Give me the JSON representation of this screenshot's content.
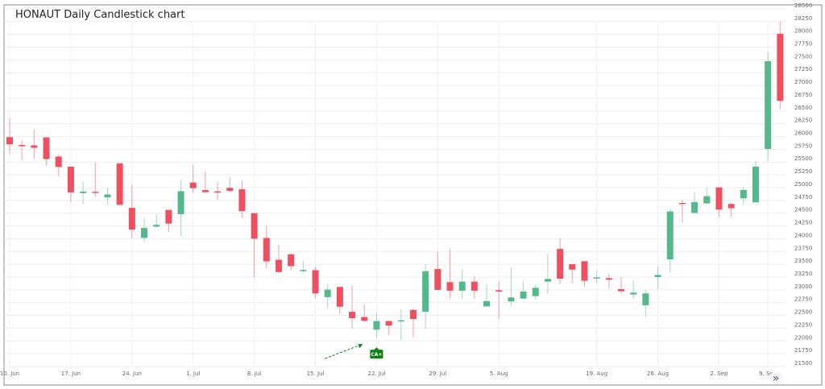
{
  "chart_data": {
    "type": "candlestick",
    "title": "HONAUT Daily Candlestick chart",
    "xlabel": "",
    "ylabel": "",
    "ylim": [
      21500,
      28500
    ],
    "ytick_step": 250,
    "y_axis_side": "right",
    "grid": true,
    "colors": {
      "up": "#54b98a",
      "down": "#ef4f5e",
      "marker": "#0b7d12"
    },
    "x_ticks": [
      "10. Jun",
      "17. Jun",
      "24. Jun",
      "1. Jul",
      "8. Jul",
      "15. Jul",
      "22. Jul",
      "29. Jul",
      "5. Aug",
      "19. Aug",
      "26. Aug",
      "2. Sep",
      "9. Sep"
    ],
    "x_tick_dates": [
      "10 Jun",
      "17 Jun",
      "24 Jun",
      "1 Jul",
      "8 Jul",
      "15 Jul",
      "22 Jul",
      "29 Jul",
      "5 Aug",
      "19 Aug",
      "26 Aug",
      "2 Sep",
      "9 Sep"
    ],
    "candles": [
      {
        "date": "10 Jun",
        "o": 25988,
        "h": 26355,
        "l": 25658,
        "c": 25847
      },
      {
        "date": "11 Jun",
        "o": 25836,
        "h": 25936,
        "l": 25538,
        "c": 25810
      },
      {
        "date": "12 Jun",
        "o": 25826,
        "h": 26135,
        "l": 25560,
        "c": 25779
      },
      {
        "date": "13 Jun",
        "o": 25983,
        "h": 25983,
        "l": 25433,
        "c": 25559
      },
      {
        "date": "14 Jun",
        "o": 25608,
        "h": 25650,
        "l": 25215,
        "c": 25404
      },
      {
        "date": "17 Jun",
        "o": 25410,
        "h": 25410,
        "l": 24723,
        "c": 24907
      },
      {
        "date": "18 Jun",
        "o": 24892,
        "h": 25124,
        "l": 24671,
        "c": 24923
      },
      {
        "date": "19 Jun",
        "o": 24918,
        "h": 25486,
        "l": 24813,
        "c": 24897
      },
      {
        "date": "20 Jun",
        "o": 24809,
        "h": 24984,
        "l": 24676,
        "c": 24866
      },
      {
        "date": "21 Jun",
        "o": 25475,
        "h": 25475,
        "l": 24650,
        "c": 24663
      },
      {
        "date": "24 Jun",
        "o": 24603,
        "h": 25055,
        "l": 24011,
        "c": 24178
      },
      {
        "date": "25 Jun",
        "o": 24016,
        "h": 24406,
        "l": 23943,
        "c": 24210
      },
      {
        "date": "26 Jun",
        "o": 24236,
        "h": 24490,
        "l": 24215,
        "c": 24272
      },
      {
        "date": "27 Jun",
        "o": 24563,
        "h": 24563,
        "l": 24127,
        "c": 24296
      },
      {
        "date": "28 Jun",
        "o": 24480,
        "h": 25150,
        "l": 24048,
        "c": 24930
      },
      {
        "date": "1 Jul",
        "o": 25099,
        "h": 25443,
        "l": 24901,
        "c": 24989
      },
      {
        "date": "2 Jul",
        "o": 24953,
        "h": 25323,
        "l": 24901,
        "c": 24911
      },
      {
        "date": "3 Jul",
        "o": 24927,
        "h": 25099,
        "l": 24765,
        "c": 24906
      },
      {
        "date": "4 Jul",
        "o": 24995,
        "h": 25198,
        "l": 24901,
        "c": 24937
      },
      {
        "date": "5 Jul",
        "o": 24969,
        "h": 25146,
        "l": 24406,
        "c": 24541
      },
      {
        "date": "8 Jul",
        "o": 24500,
        "h": 24500,
        "l": 23239,
        "c": 24000
      },
      {
        "date": "9 Jul",
        "o": 24015,
        "h": 24250,
        "l": 23416,
        "c": 23557
      },
      {
        "date": "10 Jul",
        "o": 23588,
        "h": 23880,
        "l": 23348,
        "c": 23348
      },
      {
        "date": "11 Jul",
        "o": 23697,
        "h": 23697,
        "l": 23385,
        "c": 23463
      },
      {
        "date": "12 Jul",
        "o": 23364,
        "h": 23567,
        "l": 23338,
        "c": 23390
      },
      {
        "date": "15 Jul",
        "o": 23385,
        "h": 23442,
        "l": 22831,
        "c": 22930
      },
      {
        "date": "16 Jul",
        "o": 22857,
        "h": 23113,
        "l": 22643,
        "c": 23004
      },
      {
        "date": "17 Jul",
        "o": 23056,
        "h": 23056,
        "l": 22518,
        "c": 22669
      },
      {
        "date": "18 Jul",
        "o": 22570,
        "h": 23087,
        "l": 22241,
        "c": 22445
      },
      {
        "date": "19 Jul",
        "o": 22466,
        "h": 22706,
        "l": 22382,
        "c": 22393
      },
      {
        "date": "22 Jul",
        "o": 22220,
        "h": 22555,
        "l": 22048,
        "c": 22388
      },
      {
        "date": "23 Jul",
        "o": 22388,
        "h": 22398,
        "l": 22121,
        "c": 22299
      },
      {
        "date": "24 Jul",
        "o": 22382,
        "h": 22607,
        "l": 22017,
        "c": 22403
      },
      {
        "date": "25 Jul",
        "o": 22607,
        "h": 22633,
        "l": 22069,
        "c": 22429
      },
      {
        "date": "26 Jul",
        "o": 22570,
        "h": 23505,
        "l": 22241,
        "c": 23364
      },
      {
        "date": "29 Jul",
        "o": 23406,
        "h": 23745,
        "l": 22998,
        "c": 22998
      },
      {
        "date": "30 Jul",
        "o": 23150,
        "h": 23807,
        "l": 22831,
        "c": 22983
      },
      {
        "date": "31 Jul",
        "o": 22983,
        "h": 23406,
        "l": 22816,
        "c": 23160
      },
      {
        "date": "1 Aug",
        "o": 23160,
        "h": 23259,
        "l": 22821,
        "c": 22983
      },
      {
        "date": "2 Aug",
        "o": 22675,
        "h": 23113,
        "l": 22675,
        "c": 22779
      },
      {
        "date": "5 Aug",
        "o": 22992,
        "h": 23160,
        "l": 22435,
        "c": 22966
      },
      {
        "date": "6 Aug",
        "o": 22772,
        "h": 23438,
        "l": 22682,
        "c": 22850
      },
      {
        "date": "7 Aug",
        "o": 22829,
        "h": 23160,
        "l": 22814,
        "c": 22966
      },
      {
        "date": "8 Aug",
        "o": 22877,
        "h": 23102,
        "l": 22814,
        "c": 23040
      },
      {
        "date": "9 Aug",
        "o": 23160,
        "h": 23711,
        "l": 22918,
        "c": 23212
      },
      {
        "date": "12 Aug",
        "o": 23800,
        "h": 24005,
        "l": 23113,
        "c": 23218
      },
      {
        "date": "13 Aug",
        "o": 23501,
        "h": 23501,
        "l": 23134,
        "c": 23396
      },
      {
        "date": "14 Aug",
        "o": 23559,
        "h": 23559,
        "l": 23066,
        "c": 23176
      },
      {
        "date": "19 Aug",
        "o": 23234,
        "h": 23375,
        "l": 23129,
        "c": 23244
      },
      {
        "date": "20 Aug",
        "o": 23228,
        "h": 23307,
        "l": 23029,
        "c": 23197
      },
      {
        "date": "21 Aug",
        "o": 23013,
        "h": 23250,
        "l": 22929,
        "c": 22971
      },
      {
        "date": "22 Aug",
        "o": 22908,
        "h": 23181,
        "l": 22819,
        "c": 22945
      },
      {
        "date": "23 Aug",
        "o": 22698,
        "h": 23002,
        "l": 22467,
        "c": 22929
      },
      {
        "date": "26 Aug",
        "o": 23249,
        "h": 23459,
        "l": 23013,
        "c": 23291
      },
      {
        "date": "27 Aug",
        "o": 23595,
        "h": 24576,
        "l": 23339,
        "c": 24534
      },
      {
        "date": "28 Aug",
        "o": 24701,
        "h": 24759,
        "l": 24315,
        "c": 24680
      },
      {
        "date": "29 Aug",
        "o": 24503,
        "h": 24910,
        "l": 24503,
        "c": 24717
      },
      {
        "date": "30 Aug",
        "o": 24691,
        "h": 25004,
        "l": 24691,
        "c": 24832
      },
      {
        "date": "2 Sep",
        "o": 25004,
        "h": 25004,
        "l": 24414,
        "c": 24571
      },
      {
        "date": "3 Sep",
        "o": 24680,
        "h": 24707,
        "l": 24419,
        "c": 24597
      },
      {
        "date": "4 Sep",
        "o": 24790,
        "h": 25004,
        "l": 24654,
        "c": 24952
      },
      {
        "date": "5 Sep",
        "o": 24712,
        "h": 25515,
        "l": 24712,
        "c": 25411
      },
      {
        "date": "9 Sep",
        "o": 25756,
        "h": 27664,
        "l": 25520,
        "c": 27474
      },
      {
        "date": "10 Sep",
        "o": 28011,
        "h": 28252,
        "l": 26529,
        "c": 26697
      }
    ],
    "annotations": [
      {
        "date": "22 Jul",
        "label": "CA+",
        "type": "flag-below",
        "arrow": true
      }
    ]
  },
  "controls": {
    "scroll_right_icon": "double-chevron-right-icon",
    "scroll_right_label": "»"
  }
}
